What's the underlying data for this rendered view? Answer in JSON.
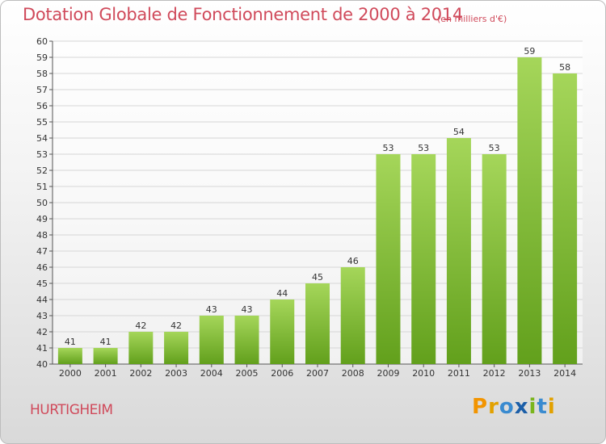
{
  "header": {
    "title": "Dotation Globale de Fonctionnement de 2000 à 2014",
    "unit": "(en milliers d'€)"
  },
  "footer": {
    "commune": "HURTIGHEIM",
    "logo": "Proxiti"
  },
  "colors": {
    "bar_light": "#a5d65a",
    "bar_dark": "#62a01c",
    "title": "#d04a5b"
  },
  "chart_data": {
    "type": "bar",
    "title": "Dotation Globale de Fonctionnement de 2000 à 2014",
    "categories": [
      "2000",
      "2001",
      "2002",
      "2003",
      "2004",
      "2005",
      "2006",
      "2007",
      "2008",
      "2009",
      "2010",
      "2011",
      "2012",
      "2013",
      "2014"
    ],
    "values": [
      41,
      41,
      42,
      42,
      43,
      43,
      44,
      45,
      46,
      53,
      53,
      54,
      53,
      59,
      58
    ],
    "ylim": [
      40,
      60
    ],
    "yticks": [
      40,
      41,
      42,
      43,
      44,
      45,
      46,
      47,
      48,
      49,
      50,
      51,
      52,
      53,
      54,
      55,
      56,
      57,
      58,
      59,
      60
    ],
    "grid": true
  }
}
